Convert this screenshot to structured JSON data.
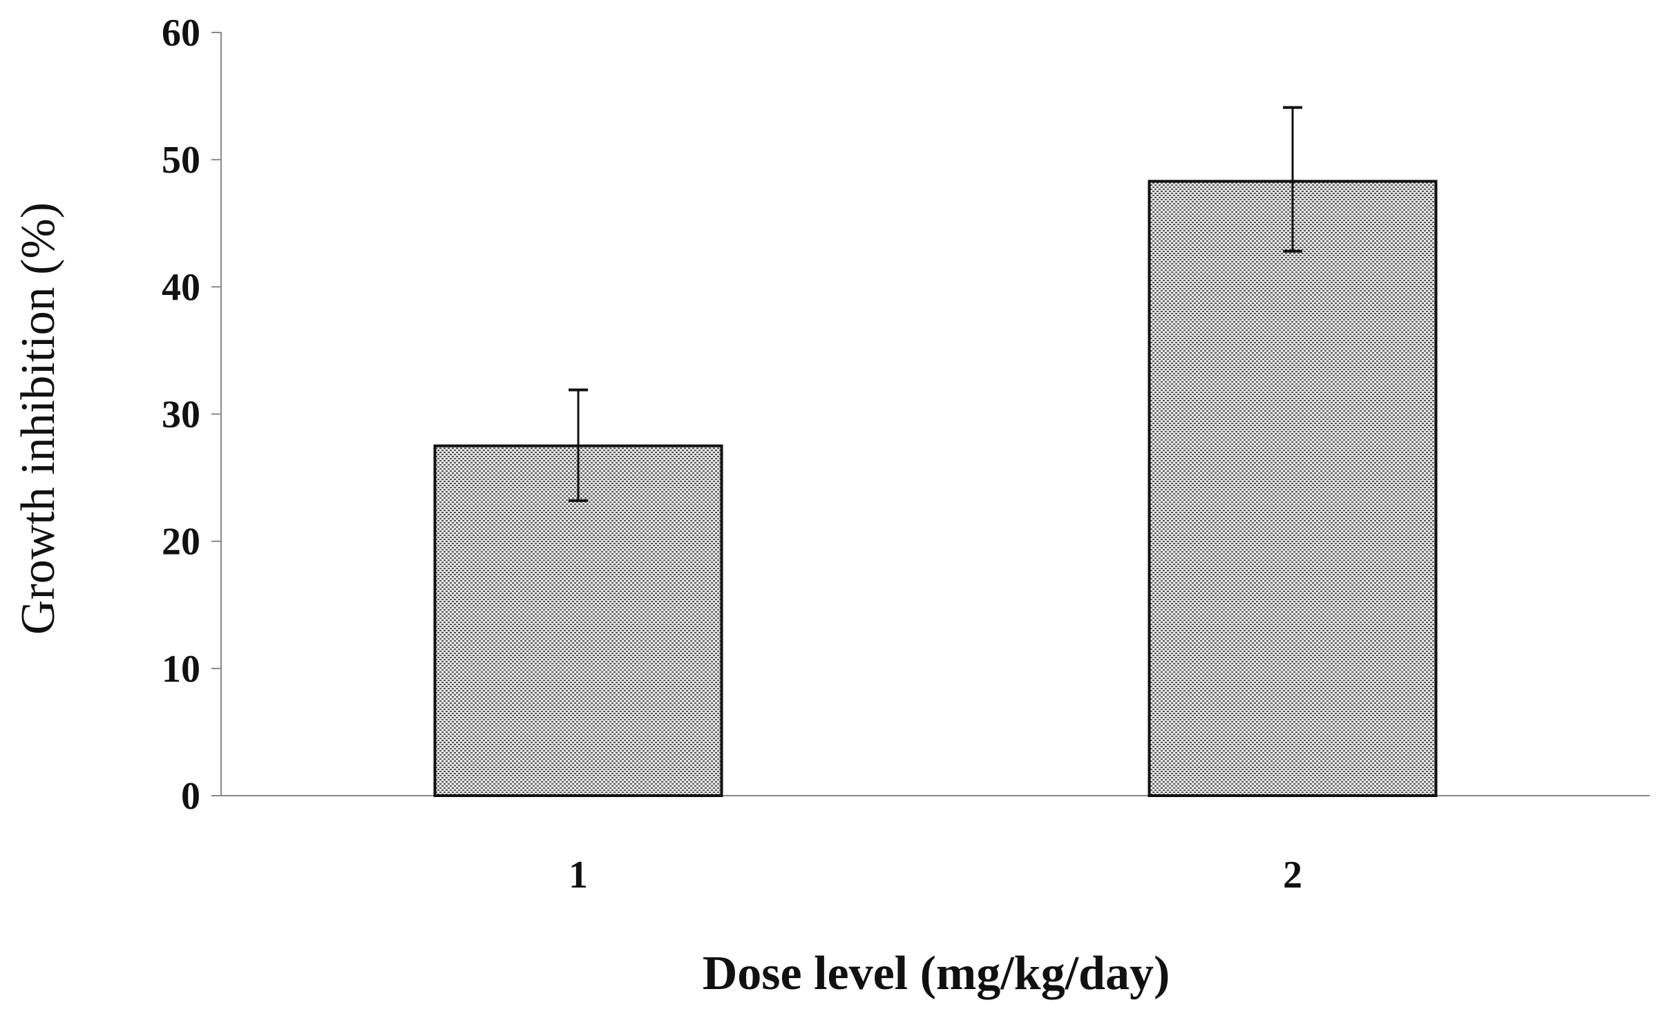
{
  "chart_data": {
    "type": "bar",
    "title": "",
    "xlabel": "Dose level (mg/kg/day)",
    "ylabel": "Growth inhibition (%)",
    "categories": [
      "1",
      "2"
    ],
    "values": [
      27.5,
      48.3
    ],
    "error_low": [
      23.2,
      42.8
    ],
    "error_high": [
      31.9,
      54.1
    ],
    "ylim": [
      0,
      60
    ],
    "yticks": [
      0,
      10,
      20,
      30,
      40,
      50,
      60
    ],
    "grid": false,
    "legend": "none"
  },
  "colors": {
    "bar_fill": "#e4e4e4",
    "bar_dot": "#555555",
    "bar_stroke": "#111111",
    "axis": "#888888",
    "text": "#111111"
  }
}
